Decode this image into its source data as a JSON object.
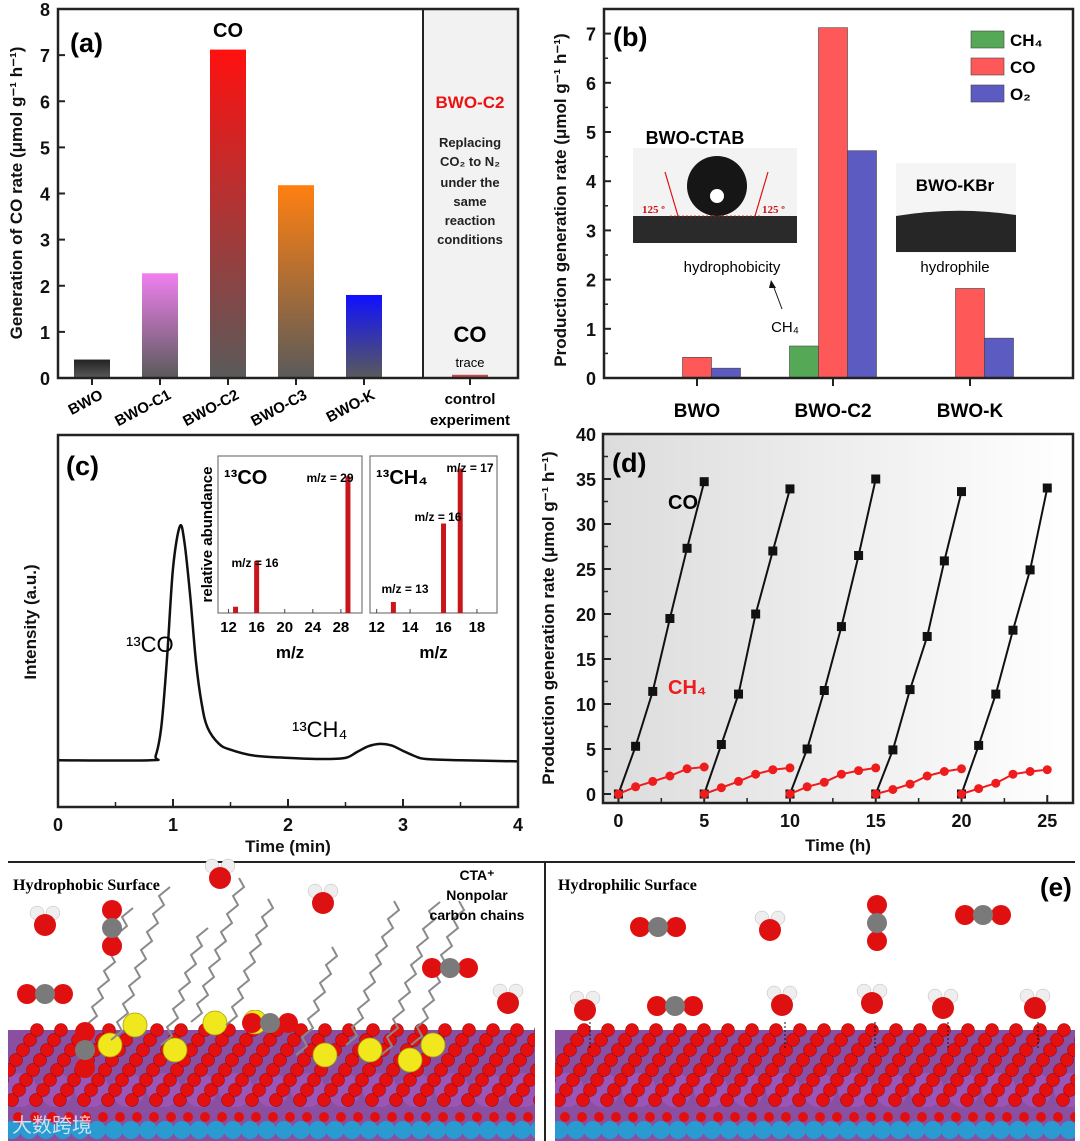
{
  "chart_data": [
    {
      "type": "bar",
      "panel_label": "(a)",
      "title": "CO",
      "ylabel": "Generation of CO rate (μmol g⁻¹ h⁻¹)",
      "ylim": [
        0,
        8
      ],
      "yticks": [
        "0",
        "1",
        "2",
        "3",
        "4",
        "5",
        "6",
        "7",
        "8"
      ],
      "categories": [
        "BWO",
        "BWO-C1",
        "BWO-C2",
        "BWO-C3",
        "BWO-K"
      ],
      "values": [
        0.4,
        2.27,
        7.12,
        4.18,
        1.8
      ],
      "colors": [
        "#222222",
        "#f080f0",
        "#ff1010",
        "#ff8010",
        "#1010ff"
      ],
      "control": {
        "category_line1": "control",
        "category_line2": "experiment",
        "value": 0.07,
        "sample": "BWO-C2",
        "note": [
          "Replacing",
          "CO₂ to N₂",
          "under the",
          "same",
          "reaction",
          "conditions"
        ],
        "product": "CO",
        "product_note": "trace"
      }
    },
    {
      "type": "bar",
      "panel_label": "(b)",
      "ylabel": "Production generation rate (μmol g⁻¹ h⁻¹)",
      "ylim": [
        0,
        7.5
      ],
      "yticks": [
        "0",
        "1",
        "2",
        "3",
        "4",
        "5",
        "6",
        "7"
      ],
      "categories": [
        "BWO",
        "BWO-C2",
        "BWO-K"
      ],
      "series": [
        {
          "name": "CH₄",
          "color": "#55a855",
          "values": [
            0,
            0.65,
            0
          ]
        },
        {
          "name": "CO",
          "color": "#fe5858",
          "values": [
            0.42,
            7.12,
            1.82
          ]
        },
        {
          "name": "O₂",
          "color": "#5b5bc2",
          "values": [
            0.2,
            4.62,
            0.81
          ]
        }
      ],
      "legend_position": "top-right",
      "annotations": {
        "inset1_title": "BWO-CTAB",
        "inset1_angle_left": "125 º",
        "inset1_angle_right": "125 º",
        "inset1_caption": "hydrophobicity",
        "inset2_title": "BWO-KBr",
        "inset2_caption": "hydrophile",
        "ch4_arrow_label": "CH₄"
      }
    },
    {
      "type": "line",
      "panel_label": "(c)",
      "xlabel": "Time (min)",
      "ylabel": "Intensity (a.u.)",
      "xlim": [
        0,
        4
      ],
      "xticks": [
        "0",
        "1",
        "2",
        "3",
        "4"
      ],
      "ylim": [
        -0.2,
        1.39
      ],
      "x": [
        0,
        0.8,
        0.85,
        0.9,
        0.95,
        1.0,
        1.06,
        1.1,
        1.15,
        1.2,
        1.25,
        1.3,
        1.4,
        1.5,
        1.7,
        2.0,
        2.3,
        2.5,
        2.6,
        2.7,
        2.8,
        2.9,
        3.0,
        3.1,
        3.2,
        3.5,
        4.0
      ],
      "y": [
        0,
        0,
        0.02,
        0.15,
        0.45,
        0.82,
        1.0,
        0.93,
        0.7,
        0.42,
        0.24,
        0.14,
        0.07,
        0.045,
        0.02,
        0.01,
        0.005,
        0.01,
        0.035,
        0.06,
        0.07,
        0.063,
        0.04,
        0.018,
        0.005,
        0,
        -0.005
      ],
      "peak_labels": [
        "¹³CO",
        "¹³CH₄"
      ]
    },
    {
      "type": "bar",
      "title": "¹³CO",
      "xlabel": "m/z",
      "ylabel": "relative abundance",
      "xlim": [
        10.5,
        31
      ],
      "xticks": [
        "12",
        "16",
        "20",
        "24",
        "28"
      ],
      "x": [
        13,
        16,
        29
      ],
      "values": [
        0.04,
        0.33,
        0.87
      ],
      "annotations": [
        "m/z = 16",
        "m/z = 29"
      ]
    },
    {
      "type": "bar",
      "title": "¹³CH₄",
      "xlabel": "m/z",
      "xlim": [
        11.6,
        19.2
      ],
      "xticks": [
        "12",
        "14",
        "16",
        "18"
      ],
      "x": [
        13,
        16,
        17
      ],
      "values": [
        0.07,
        0.57,
        0.92
      ],
      "annotations": [
        "m/z = 13",
        "m/z = 16",
        "m/z = 17"
      ]
    },
    {
      "type": "line",
      "panel_label": "(d)",
      "xlabel": "Time (h)",
      "ylabel": "Production generation rate (μmol g⁻¹ h⁻¹)",
      "xlim": [
        -0.9,
        26.5
      ],
      "ylim": [
        -1,
        40
      ],
      "xticks": [
        "0",
        "5",
        "10",
        "15",
        "20",
        "25"
      ],
      "yticks": [
        "0",
        "5",
        "10",
        "15",
        "20",
        "25",
        "30",
        "35",
        "40"
      ],
      "series": [
        {
          "name": "CO",
          "color": "#111111",
          "marker": "square",
          "cycles": [
            [
              0,
              5.3,
              11.4,
              19.5,
              27.3,
              34.7
            ],
            [
              0,
              5.5,
              11.1,
              20,
              27,
              33.9
            ],
            [
              0,
              5,
              11.5,
              18.6,
              26.5,
              35
            ],
            [
              0,
              4.9,
              11.6,
              17.5,
              25.9,
              33.6
            ],
            [
              0,
              5.4,
              11.1,
              18.2,
              24.9,
              34
            ]
          ]
        },
        {
          "name": "CH₄",
          "color": "#ee1c1c",
          "marker": "circle",
          "cycles": [
            [
              0,
              0.8,
              1.4,
              2.0,
              2.8,
              3.0
            ],
            [
              0,
              0.7,
              1.4,
              2.2,
              2.7,
              2.9
            ],
            [
              0,
              0.8,
              1.3,
              2.2,
              2.6,
              2.9
            ],
            [
              0,
              0.5,
              1.1,
              2.0,
              2.5,
              2.8
            ],
            [
              0,
              0.6,
              1.2,
              2.2,
              2.5,
              2.7
            ]
          ]
        }
      ]
    }
  ],
  "illustration": {
    "panel_label": "(e)",
    "left_title": "Hydrophobic Surface",
    "left_note": [
      "CTA⁺",
      "Nonpolar",
      "carbon chains"
    ],
    "right_title": "Hydrophilic Surface",
    "watermark": "大数跨境"
  }
}
